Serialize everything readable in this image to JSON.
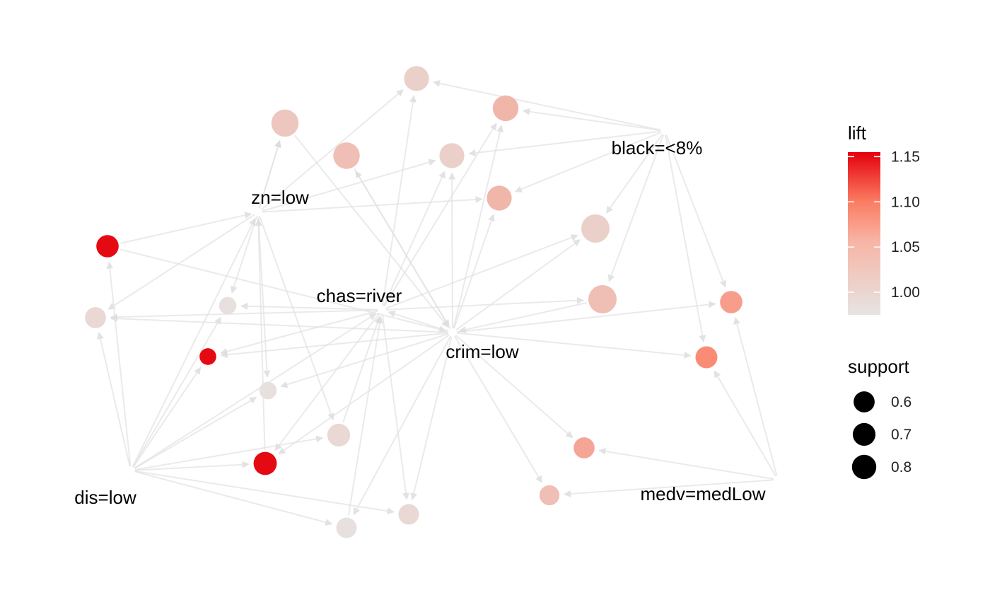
{
  "legend": {
    "lift": {
      "title": "lift",
      "min": 0.975,
      "max": 1.155,
      "ticks": [
        {
          "value": 1.15,
          "label": "1.15"
        },
        {
          "value": 1.1,
          "label": "1.10"
        },
        {
          "value": 1.05,
          "label": "1.05"
        },
        {
          "value": 1.0,
          "label": "1.00"
        }
      ],
      "colors": {
        "low": "#e6e4e3",
        "mid": "#fb8a73",
        "high": "#e3000b"
      }
    },
    "support": {
      "title": "support",
      "items": [
        {
          "value": 0.6,
          "label": "0.6"
        },
        {
          "value": 0.7,
          "label": "0.7"
        },
        {
          "value": 0.8,
          "label": "0.8"
        }
      ]
    }
  },
  "items": [
    {
      "id": "zn",
      "label": "zn=low"
    },
    {
      "id": "black",
      "label": "black=<8%"
    },
    {
      "id": "chas",
      "label": "chas=river"
    },
    {
      "id": "crim",
      "label": "crim=low"
    },
    {
      "id": "dis",
      "label": "dis=low"
    },
    {
      "id": "medv",
      "label": "medv=medLow"
    }
  ],
  "rules": [
    {
      "id": "r1",
      "support": 0.62,
      "lift": 1.0
    },
    {
      "id": "r2",
      "support": 0.66,
      "lift": 1.03
    },
    {
      "id": "r3",
      "support": 0.74,
      "lift": 1.01
    },
    {
      "id": "r4",
      "support": 0.7,
      "lift": 1.02
    },
    {
      "id": "r5",
      "support": 0.62,
      "lift": 1.0
    },
    {
      "id": "r6",
      "support": 0.62,
      "lift": 1.03
    },
    {
      "id": "r7",
      "support": 0.8,
      "lift": 1.0
    },
    {
      "id": "r8",
      "support": 0.8,
      "lift": 1.02
    },
    {
      "id": "r9",
      "support": 0.5,
      "lift": 1.15
    },
    {
      "id": "r10",
      "support": 0.44,
      "lift": 0.99
    },
    {
      "id": "r11",
      "support": 0.3,
      "lift": 0.98
    },
    {
      "id": "r12",
      "support": 0.5,
      "lift": 1.06
    },
    {
      "id": "r13",
      "support": 0.28,
      "lift": 1.15
    },
    {
      "id": "r14",
      "support": 0.48,
      "lift": 1.08
    },
    {
      "id": "r15",
      "support": 0.3,
      "lift": 0.98
    },
    {
      "id": "r16",
      "support": 0.52,
      "lift": 0.99
    },
    {
      "id": "r17",
      "support": 0.44,
      "lift": 1.05
    },
    {
      "id": "r18",
      "support": 0.54,
      "lift": 1.15
    },
    {
      "id": "r19",
      "support": 0.4,
      "lift": 1.02
    },
    {
      "id": "r20",
      "support": 0.42,
      "lift": 0.98
    },
    {
      "id": "r21",
      "support": 0.42,
      "lift": 0.99
    }
  ],
  "edges": [
    [
      "black",
      "r1"
    ],
    [
      "black",
      "r2"
    ],
    [
      "black",
      "r5"
    ],
    [
      "black",
      "r6"
    ],
    [
      "black",
      "r7"
    ],
    [
      "black",
      "r8"
    ],
    [
      "black",
      "r12"
    ],
    [
      "black",
      "r14"
    ],
    [
      "zn",
      "r1"
    ],
    [
      "zn",
      "r3"
    ],
    [
      "zn",
      "r5"
    ],
    [
      "zn",
      "r6"
    ],
    [
      "zn",
      "r10"
    ],
    [
      "zn",
      "r11"
    ],
    [
      "zn",
      "r15"
    ],
    [
      "zn",
      "r16"
    ],
    [
      "zn",
      "r3"
    ],
    [
      "r9",
      "zn"
    ],
    [
      "r18",
      "zn"
    ],
    [
      "chas",
      "r1"
    ],
    [
      "chas",
      "r2"
    ],
    [
      "chas",
      "r5"
    ],
    [
      "chas",
      "r7"
    ],
    [
      "chas",
      "r8"
    ],
    [
      "chas",
      "r10"
    ],
    [
      "chas",
      "r11"
    ],
    [
      "chas",
      "r13"
    ],
    [
      "chas",
      "r18"
    ],
    [
      "chas",
      "r21"
    ],
    [
      "r3",
      "crim"
    ],
    [
      "r4",
      "crim"
    ],
    [
      "crim",
      "r4"
    ],
    [
      "r9",
      "crim"
    ],
    [
      "crim",
      "r2"
    ],
    [
      "crim",
      "r5"
    ],
    [
      "crim",
      "r6"
    ],
    [
      "crim",
      "r7"
    ],
    [
      "crim",
      "r10"
    ],
    [
      "crim",
      "r12"
    ],
    [
      "crim",
      "r13"
    ],
    [
      "crim",
      "r14"
    ],
    [
      "crim",
      "r15"
    ],
    [
      "crim",
      "r17"
    ],
    [
      "crim",
      "r19"
    ],
    [
      "crim",
      "r20"
    ],
    [
      "crim",
      "r21"
    ],
    [
      "crim",
      "r18"
    ],
    [
      "r8",
      "crim"
    ],
    [
      "crim",
      "chas"
    ],
    [
      "r16",
      "chas"
    ],
    [
      "r20",
      "chas"
    ],
    [
      "dis",
      "r9"
    ],
    [
      "dis",
      "r10"
    ],
    [
      "dis",
      "r11"
    ],
    [
      "dis",
      "r13"
    ],
    [
      "dis",
      "r15"
    ],
    [
      "dis",
      "r16"
    ],
    [
      "dis",
      "r18"
    ],
    [
      "dis",
      "r20"
    ],
    [
      "dis",
      "r21"
    ],
    [
      "dis",
      "zn"
    ],
    [
      "dis",
      "chas"
    ],
    [
      "medv",
      "r12"
    ],
    [
      "medv",
      "r14"
    ],
    [
      "medv",
      "r17"
    ],
    [
      "medv",
      "r19"
    ]
  ]
}
